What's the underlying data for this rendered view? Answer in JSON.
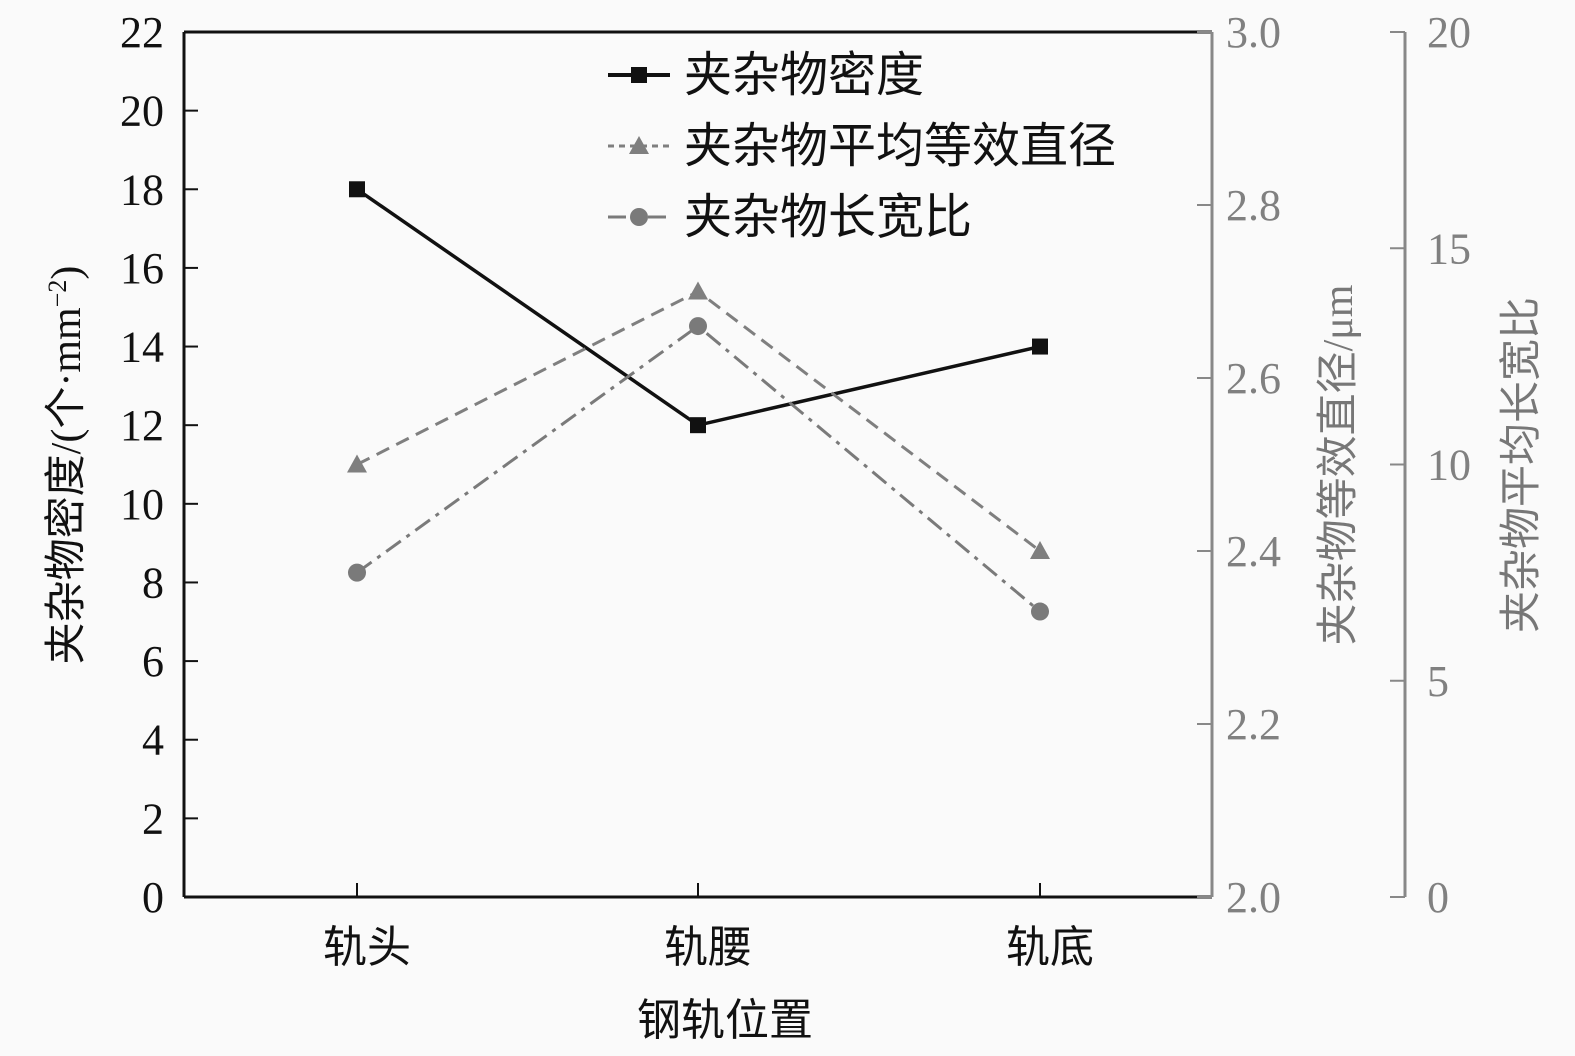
{
  "chart_data": {
    "type": "line",
    "xlabel": "钢轨位置",
    "categories": [
      "轨头",
      "轨腰",
      "轨底"
    ],
    "legend_position": "top-center",
    "grid": false,
    "axes": {
      "left": {
        "label": "夹杂物密度/(个·mm",
        "label_sup": "−2",
        "label_end": ")",
        "ylim": [
          0,
          22
        ],
        "ticks": [
          "0",
          "2",
          "4",
          "6",
          "8",
          "10",
          "12",
          "14",
          "16",
          "18",
          "20",
          "22"
        ],
        "color": "#111111"
      },
      "right1": {
        "label": "夹杂物等效直径/μm",
        "ylim": [
          2.0,
          3.0
        ],
        "ticks": [
          "2.0",
          "2.2",
          "2.4",
          "2.6",
          "2.8",
          "3.0"
        ],
        "color": "#808080"
      },
      "right2": {
        "label": "夹杂物平均长宽比",
        "ylim": [
          0,
          20
        ],
        "ticks": [
          "0",
          "5",
          "10",
          "15",
          "20"
        ],
        "color": "#808080"
      }
    },
    "series": [
      {
        "name": "夹杂物密度",
        "axis": "left",
        "values": [
          18,
          12,
          14
        ],
        "color": "#111111",
        "marker": "square",
        "dash": "solid"
      },
      {
        "name": "夹杂物平均等效直径",
        "axis": "right1",
        "values": [
          2.5,
          2.7,
          2.4
        ],
        "color": "#7f7f7f",
        "marker": "triangle",
        "dash": "dashed"
      },
      {
        "name": "夹杂物长宽比",
        "axis": "right2",
        "values": [
          7.5,
          13.2,
          6.6
        ],
        "color": "#7a7a7a",
        "marker": "circle",
        "dash": "dash-dot"
      }
    ]
  }
}
